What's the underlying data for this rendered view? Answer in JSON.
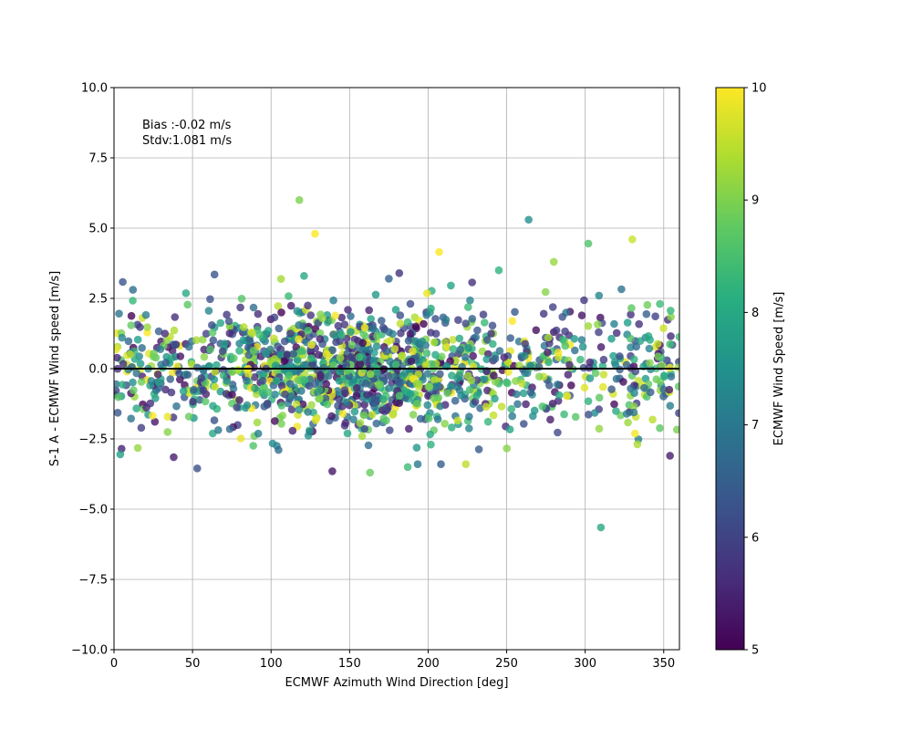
{
  "chart_data": {
    "type": "scatter",
    "xlabel": "ECMWF Azimuth Wind Direction [deg]",
    "ylabel": "S-1 A - ECMWF Wind speed [m/s]",
    "xlim": [
      0,
      360
    ],
    "ylim": [
      -10,
      10
    ],
    "x_ticks": [
      0,
      50,
      100,
      150,
      200,
      250,
      300,
      350
    ],
    "x_tick_labels": [
      "0",
      "50",
      "100",
      "150",
      "200",
      "250",
      "300",
      "350"
    ],
    "y_ticks": [
      -10,
      -7.5,
      -5,
      -2.5,
      0,
      2.5,
      5,
      7.5,
      10
    ],
    "y_tick_labels": [
      "−10.0",
      "−7.5",
      "−5.0",
      "−2.5",
      "0.0",
      "2.5",
      "5.0",
      "7.5",
      "10.0"
    ],
    "grid": true,
    "reference_line_y": 0,
    "annotations": [
      "Bias :-0.02 m/s",
      "Stdv:1.081 m/s"
    ],
    "bias": -0.02,
    "stdv": 1.081,
    "colorbar": {
      "label": "ECMWF Wind Speed [m/s]",
      "colormap": "viridis",
      "range": [
        5,
        10
      ],
      "ticks": [
        5,
        6,
        7,
        8,
        9,
        10
      ],
      "tick_labels": [
        "5",
        "6",
        "7",
        "8",
        "9",
        "10"
      ]
    },
    "marker_alpha": 0.8,
    "sample_points": [
      {
        "x": 118,
        "y": 6.0,
        "c": 9.0
      },
      {
        "x": 128,
        "y": 4.8,
        "c": 10.0
      },
      {
        "x": 207,
        "y": 4.15,
        "c": 10.0
      },
      {
        "x": 264,
        "y": 5.3,
        "c": 7.5
      },
      {
        "x": 302,
        "y": 4.45,
        "c": 8.6
      },
      {
        "x": 330,
        "y": 4.6,
        "c": 9.6
      },
      {
        "x": 121,
        "y": 3.3,
        "c": 8.0
      },
      {
        "x": 64,
        "y": 3.35,
        "c": 6.3
      },
      {
        "x": 175,
        "y": 3.2,
        "c": 6.5
      },
      {
        "x": 280,
        "y": 3.8,
        "c": 9.2
      },
      {
        "x": 245,
        "y": 3.5,
        "c": 8.2
      },
      {
        "x": 310,
        "y": -5.65,
        "c": 8.0
      },
      {
        "x": 53,
        "y": -3.55,
        "c": 6.2
      },
      {
        "x": 163,
        "y": -3.7,
        "c": 8.8
      },
      {
        "x": 187,
        "y": -3.5,
        "c": 8.4
      },
      {
        "x": 139,
        "y": -3.65,
        "c": 5.3
      },
      {
        "x": 38,
        "y": -3.15,
        "c": 5.4
      },
      {
        "x": 4,
        "y": -3.05,
        "c": 7.8
      },
      {
        "x": 354,
        "y": -3.1,
        "c": 5.4
      }
    ],
    "scatter_points": {
      "count": 1500,
      "x_range": [
        0,
        360
      ],
      "y_center": 0,
      "y_spread": 1.08,
      "color_range": [
        5,
        10
      ]
    }
  }
}
